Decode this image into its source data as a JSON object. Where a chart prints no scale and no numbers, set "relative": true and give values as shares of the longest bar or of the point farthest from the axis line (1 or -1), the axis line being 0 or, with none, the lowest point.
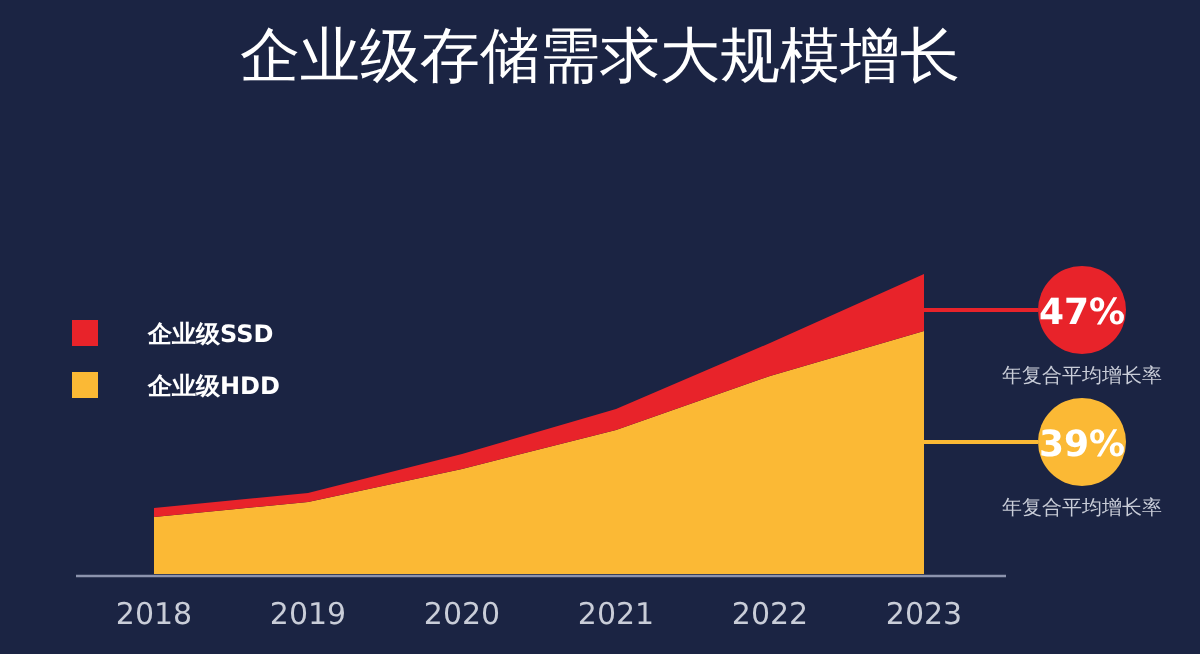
{
  "chart_data": {
    "type": "area",
    "title": "企业级存储需求大规模增长",
    "stacked": true,
    "relative": true,
    "legend": "top left",
    "categories": [
      "2018",
      "2019",
      "2020",
      "2021",
      "2022",
      "2023"
    ],
    "series": [
      {
        "name": "企业级HDD",
        "color": "#fbb935",
        "values": [
          0.19,
          0.24,
          0.35,
          0.48,
          0.66,
          0.81
        ]
      },
      {
        "name": "企业级SSD",
        "color": "#e8232a",
        "values": [
          0.03,
          0.03,
          0.05,
          0.07,
          0.11,
          0.19
        ]
      }
    ],
    "annotations": [
      "47%",
      "年复合平均增长率",
      "39%",
      "年复合平均增长率"
    ]
  }
}
